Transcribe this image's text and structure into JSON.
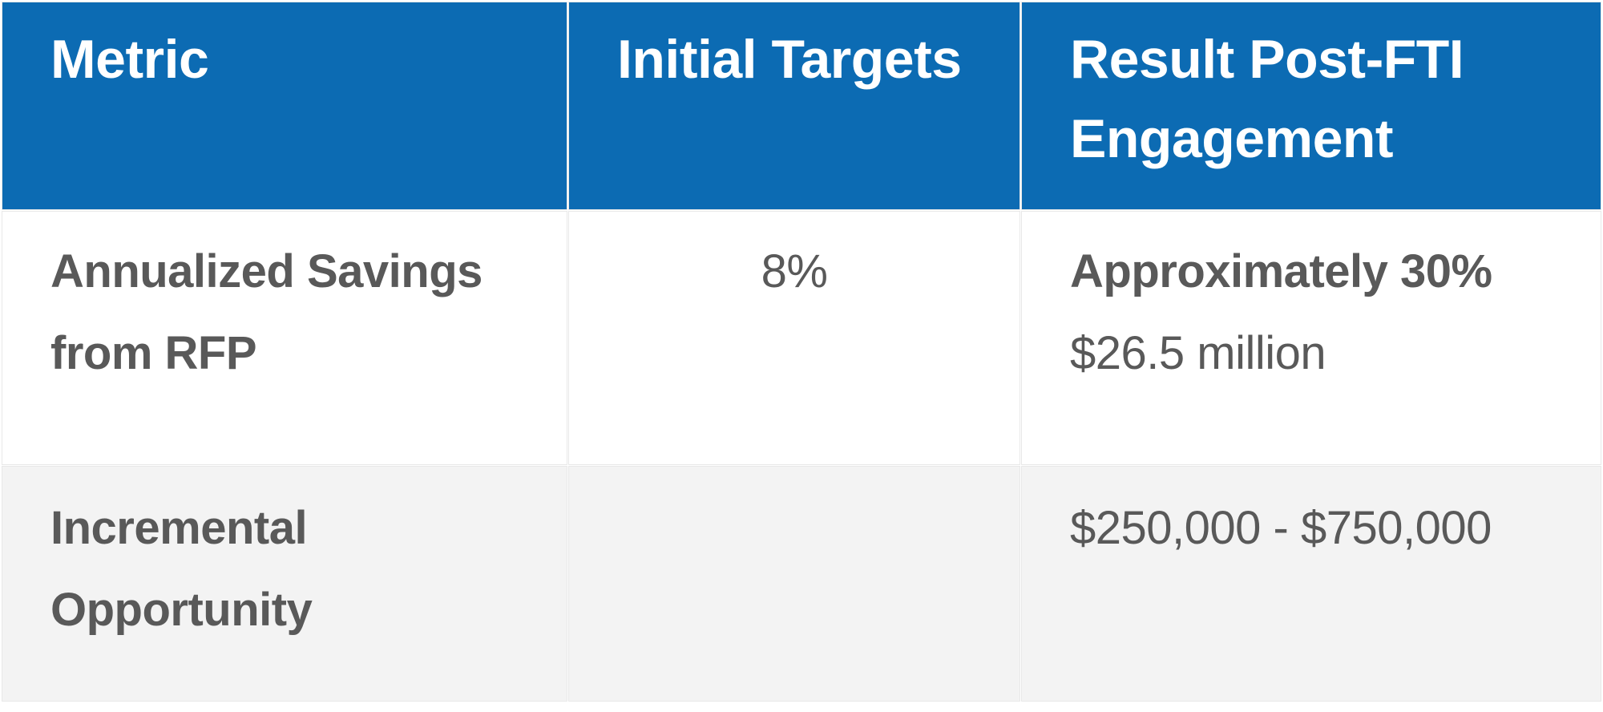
{
  "colors": {
    "header_bg": "#0c6bb3",
    "header_text": "#ffffff",
    "body_text": "#595959",
    "row_alt_bg": "#f3f3f3",
    "gap": "#ffffff",
    "hairline": "#e8e8e8"
  },
  "table": {
    "headers": [
      "Metric",
      "Initial Targets",
      "Result Post-FTI Engagement"
    ],
    "rows": [
      {
        "metric": "Annualized Savings from RFP",
        "initial_target": "8%",
        "result_primary": "Approximately 30%",
        "result_secondary": "$26.5 million"
      },
      {
        "metric": "Incremental Opportunity",
        "initial_target": "",
        "result_primary": "",
        "result_secondary": "$250,000 - $750,000"
      }
    ]
  }
}
